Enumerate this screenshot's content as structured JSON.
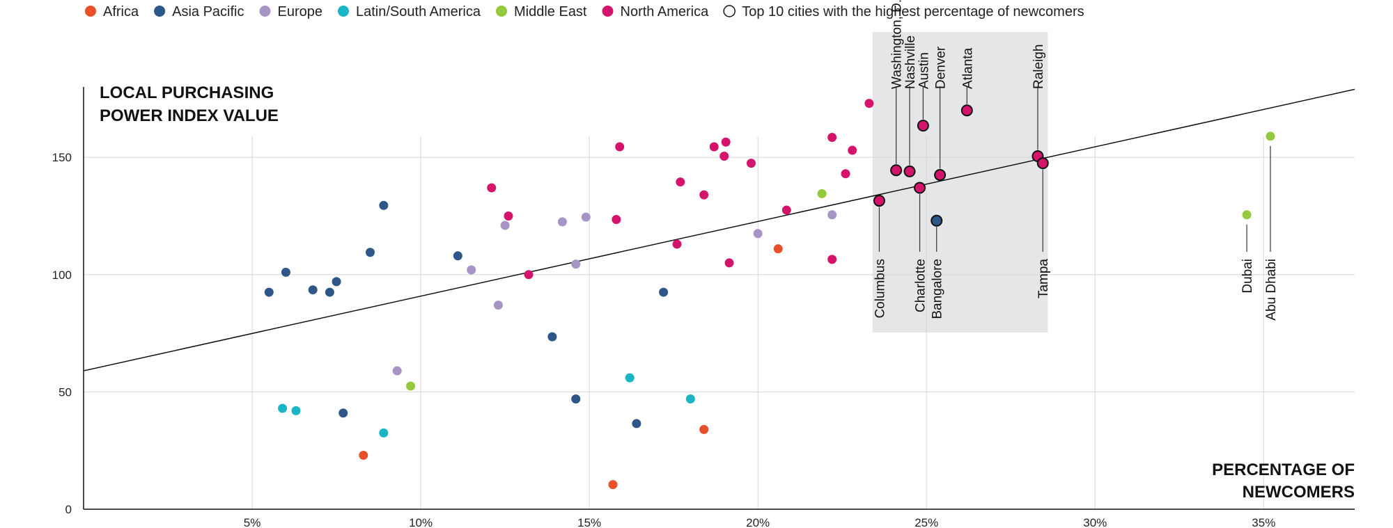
{
  "legend": [
    {
      "label": "Africa",
      "color": "#e8502a",
      "outline": false
    },
    {
      "label": "Asia Pacific",
      "color": "#2d5689",
      "outline": false
    },
    {
      "label": "Europe",
      "color": "#a794c6",
      "outline": false
    },
    {
      "label": "Latin/South America",
      "color": "#19b5c6",
      "outline": false
    },
    {
      "label": "Middle East",
      "color": "#94c83d",
      "outline": false
    },
    {
      "label": "North America",
      "color": "#d4136b",
      "outline": false
    },
    {
      "label": "Top 10 cities with the highest percentage of newcomers",
      "color": "#ffffff",
      "outline": true
    }
  ],
  "chart_data": {
    "type": "scatter",
    "ylabel_lines": [
      "LOCAL PURCHASING",
      "POWER INDEX VALUE"
    ],
    "xlabel_lines": [
      "PERCENTAGE OF",
      "NEWCOMERS"
    ],
    "xlim": [
      0,
      37.7
    ],
    "ylim": [
      0,
      180
    ],
    "x_ticks": [
      5,
      10,
      15,
      20,
      25,
      30,
      35
    ],
    "x_tick_labels": [
      "5%",
      "10%",
      "15%",
      "20%",
      "25%",
      "30%",
      "35%"
    ],
    "y_ticks": [
      0,
      50,
      100,
      150
    ],
    "y_tick_labels": [
      "0",
      "50",
      "100",
      "150"
    ],
    "trend_line": {
      "x": [
        0,
        37.7
      ],
      "y": [
        59,
        179
      ]
    },
    "series": [
      {
        "name": "Africa",
        "color": "#e8502a",
        "points": [
          [
            8.3,
            23
          ],
          [
            15.7,
            10.5
          ],
          [
            18.4,
            34
          ],
          [
            20.6,
            111
          ]
        ]
      },
      {
        "name": "Asia Pacific",
        "color": "#2d5689",
        "points": [
          [
            5.5,
            92.5
          ],
          [
            6.0,
            101
          ],
          [
            6.8,
            93.5
          ],
          [
            7.3,
            92.5
          ],
          [
            7.5,
            97
          ],
          [
            7.7,
            41
          ],
          [
            8.5,
            109.5
          ],
          [
            8.9,
            129.5
          ],
          [
            11.1,
            108
          ],
          [
            13.9,
            73.5
          ],
          [
            14.6,
            47
          ],
          [
            16.4,
            36.5
          ],
          [
            17.2,
            92.5
          ]
        ]
      },
      {
        "name": "Europe",
        "color": "#a794c6",
        "points": [
          [
            9.3,
            59
          ],
          [
            11.5,
            102
          ],
          [
            12.3,
            87
          ],
          [
            12.5,
            121
          ],
          [
            14.2,
            122.5
          ],
          [
            14.6,
            104.5
          ],
          [
            14.9,
            124.5
          ],
          [
            20.0,
            117.5
          ],
          [
            22.2,
            125.5
          ]
        ]
      },
      {
        "name": "Latin/South America",
        "color": "#19b5c6",
        "points": [
          [
            5.9,
            43
          ],
          [
            6.3,
            42
          ],
          [
            8.9,
            32.5
          ],
          [
            16.2,
            56
          ],
          [
            18.0,
            47
          ]
        ]
      },
      {
        "name": "Middle East",
        "color": "#94c83d",
        "points": [
          [
            9.7,
            52.5
          ],
          [
            21.9,
            134.5
          ]
        ]
      },
      {
        "name": "North America",
        "color": "#d4136b",
        "points": [
          [
            12.1,
            137
          ],
          [
            12.6,
            125
          ],
          [
            13.2,
            100
          ],
          [
            15.8,
            123.5
          ],
          [
            15.9,
            154.5
          ],
          [
            17.6,
            113
          ],
          [
            17.7,
            139.5
          ],
          [
            18.4,
            134
          ],
          [
            18.7,
            154.5
          ],
          [
            19.0,
            150.5
          ],
          [
            19.05,
            156.5
          ],
          [
            19.15,
            105
          ],
          [
            19.8,
            147.5
          ],
          [
            20.85,
            127.5
          ],
          [
            22.2,
            158.5
          ],
          [
            22.2,
            106.5
          ],
          [
            22.6,
            143
          ],
          [
            22.8,
            153
          ],
          [
            23.3,
            173
          ]
        ]
      }
    ],
    "highlighted_cities": [
      {
        "label": "Columbus",
        "region": "North America",
        "x": 23.6,
        "y": 131.5,
        "label_side": "below"
      },
      {
        "label": "Washington, D.C.",
        "region": "North America",
        "x": 24.1,
        "y": 144.5,
        "label_side": "above"
      },
      {
        "label": "Nashville",
        "region": "North America",
        "x": 24.5,
        "y": 144,
        "label_side": "above"
      },
      {
        "label": "Charlotte",
        "region": "North America",
        "x": 24.8,
        "y": 137,
        "label_side": "below"
      },
      {
        "label": "Austin",
        "region": "North America",
        "x": 24.9,
        "y": 163.5,
        "label_side": "above"
      },
      {
        "label": "Bangalore",
        "region": "Asia Pacific",
        "x": 25.3,
        "y": 123,
        "label_side": "below"
      },
      {
        "label": "Denver",
        "region": "North America",
        "x": 25.4,
        "y": 142.5,
        "label_side": "above"
      },
      {
        "label": "Atlanta",
        "region": "North America",
        "x": 26.2,
        "y": 170,
        "label_side": "above"
      },
      {
        "label": "Raleigh",
        "region": "North America",
        "x": 28.3,
        "y": 150.5,
        "label_side": "above"
      },
      {
        "label": "Tampa",
        "region": "North America",
        "x": 28.45,
        "y": 147.5,
        "label_side": "below"
      }
    ],
    "labeled_points": [
      {
        "label": "Dubai",
        "region": "Middle East",
        "x": 34.5,
        "y": 125.5
      },
      {
        "label": "Abu Dhabi",
        "region": "Middle East",
        "x": 35.2,
        "y": 159
      }
    ],
    "highlight_band_color": "#e5e6e8",
    "grid": true
  }
}
